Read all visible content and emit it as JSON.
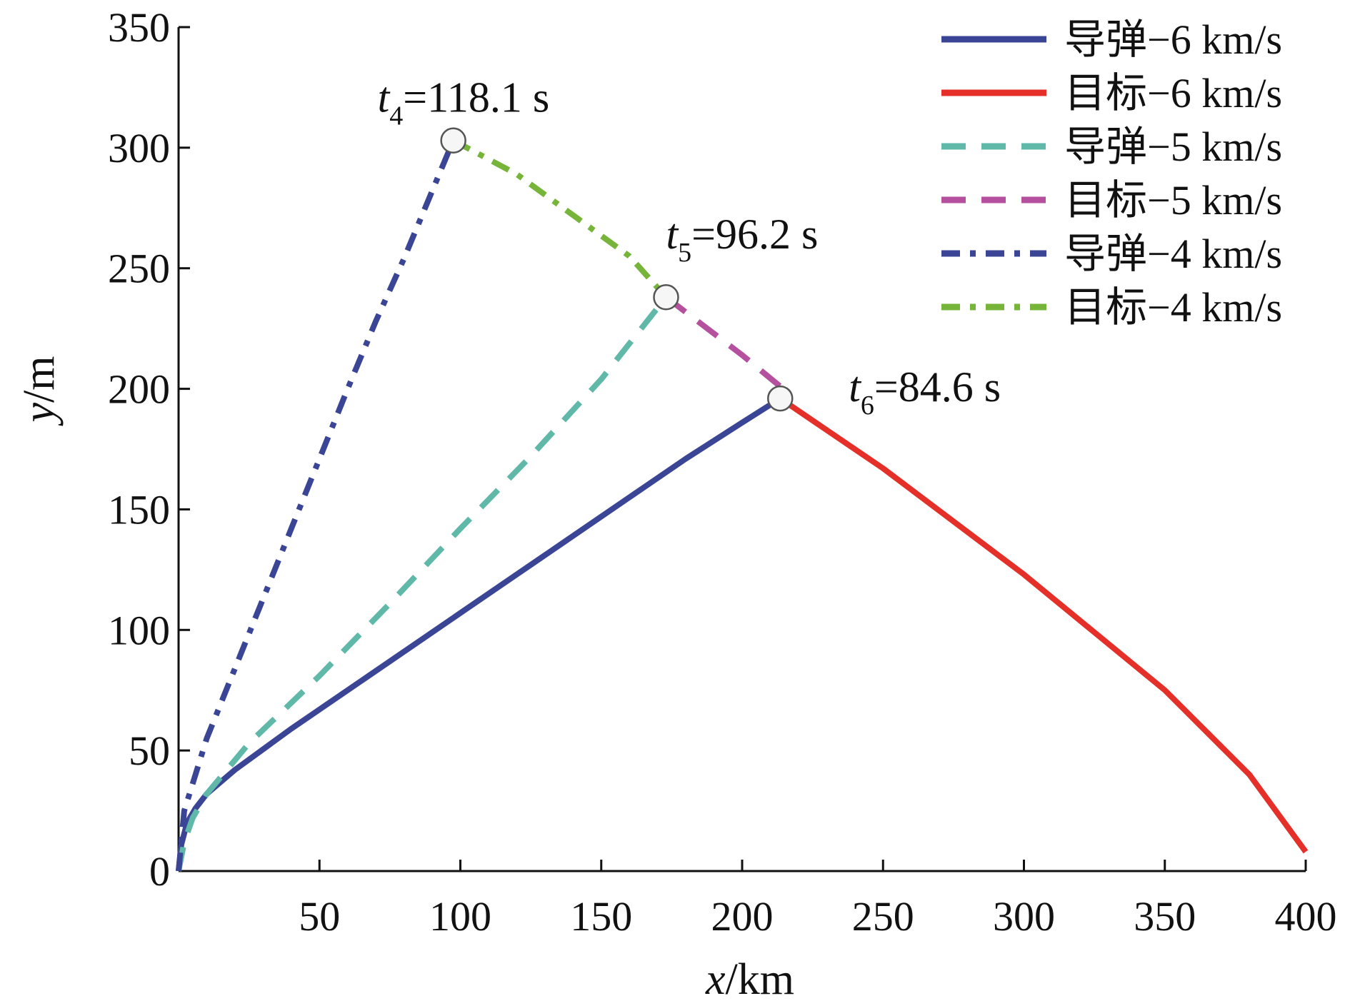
{
  "chart_data": {
    "type": "line",
    "xlabel": {
      "var": "x",
      "unit": "/km"
    },
    "ylabel": {
      "var": "y",
      "unit": "/m"
    },
    "xlim": [
      0,
      400
    ],
    "ylim": [
      0,
      350
    ],
    "xticks": [
      50,
      100,
      150,
      200,
      250,
      300,
      350,
      400
    ],
    "yticks": [
      0,
      50,
      100,
      150,
      200,
      250,
      300,
      350
    ],
    "grid": false,
    "legend_position": "top-right",
    "series": [
      {
        "name": "导弹−6 km/s",
        "color": "#3a4595",
        "style": "solid",
        "points": [
          [
            0,
            0
          ],
          [
            1,
            11
          ],
          [
            3,
            20
          ],
          [
            6,
            26
          ],
          [
            10,
            32
          ],
          [
            20,
            42
          ],
          [
            40,
            59
          ],
          [
            60,
            75
          ],
          [
            80,
            91
          ],
          [
            100,
            107
          ],
          [
            120,
            123
          ],
          [
            140,
            139
          ],
          [
            160,
            155
          ],
          [
            180,
            171
          ],
          [
            200,
            186
          ],
          [
            213.5,
            196
          ]
        ]
      },
      {
        "name": "目标−6 km/s",
        "color": "#e5302a",
        "style": "solid",
        "points": [
          [
            213.5,
            196
          ],
          [
            250,
            167
          ],
          [
            300,
            123
          ],
          [
            350,
            75
          ],
          [
            380,
            40
          ],
          [
            400,
            8
          ]
        ]
      },
      {
        "name": "导弹−5 km/s",
        "color": "#5fb8a8",
        "style": "dashed",
        "points": [
          [
            0,
            0
          ],
          [
            2,
            12
          ],
          [
            5,
            22
          ],
          [
            10,
            32
          ],
          [
            25,
            53
          ],
          [
            50,
            81
          ],
          [
            75,
            111
          ],
          [
            100,
            142
          ],
          [
            125,
            172
          ],
          [
            150,
            204
          ],
          [
            173,
            238
          ]
        ]
      },
      {
        "name": "目标−5 km/s",
        "color": "#b5509f",
        "style": "dashed",
        "points": [
          [
            173,
            238
          ],
          [
            200,
            214
          ],
          [
            213.5,
            201
          ]
        ]
      },
      {
        "name": "导弹−4 km/s",
        "color": "#3a4595",
        "style": "dashdot",
        "points": [
          [
            0,
            0
          ],
          [
            2,
            25
          ],
          [
            10,
            55
          ],
          [
            20,
            84
          ],
          [
            30,
            113
          ],
          [
            40,
            142
          ],
          [
            50,
            171
          ],
          [
            60,
            200
          ],
          [
            70,
            228
          ],
          [
            80,
            254
          ],
          [
            90,
            282
          ],
          [
            97.5,
            303
          ]
        ]
      },
      {
        "name": "目标−4 km/s",
        "color": "#76b43a",
        "style": "dashdot",
        "points": [
          [
            97.5,
            303
          ],
          [
            120,
            289
          ],
          [
            140,
            272
          ],
          [
            160,
            255
          ],
          [
            173,
            238
          ]
        ]
      }
    ],
    "markers": [
      {
        "x": 97.5,
        "y": 303,
        "label_var": "t",
        "label_sub": "4",
        "label_value": "=118.1 s"
      },
      {
        "x": 173,
        "y": 238,
        "label_var": "t",
        "label_sub": "5",
        "label_value": "=96.2 s"
      },
      {
        "x": 213.5,
        "y": 196,
        "label_var": "t",
        "label_sub": "6",
        "label_value": "=84.6 s"
      }
    ]
  }
}
